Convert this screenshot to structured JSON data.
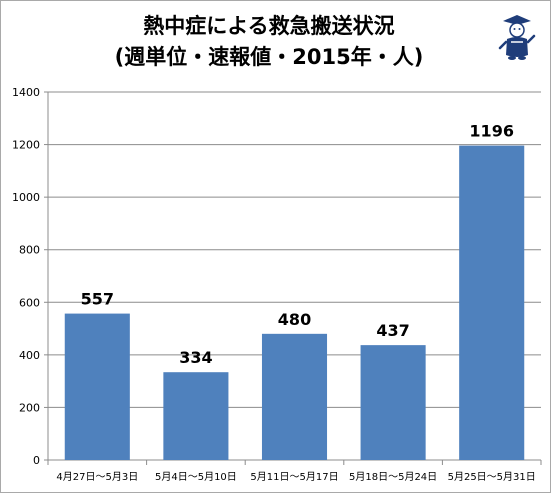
{
  "colors": {
    "bar": "#4f81bd",
    "gridline": "#8c8c8c",
    "axis": "#8c8c8c",
    "frame_border": "#a9a9a9",
    "mascot_accent": "#1f3d7a"
  },
  "decoration": {
    "mascot_icon": "cartoon-mascot-icon"
  },
  "chart_data": {
    "type": "bar",
    "title": "熱中症による救急搬送状況",
    "subtitle": "(週単位・速報値・2015年・人)",
    "xlabel": "",
    "ylabel": "",
    "categories": [
      "4月27日～5月3日",
      "5月4日～5月10日",
      "5月11日～5月17日",
      "5月18日～5月24日",
      "5月25日～5月31日"
    ],
    "values": [
      557,
      334,
      480,
      437,
      1196
    ],
    "ylim": [
      0,
      1400
    ],
    "yticks": [
      "0",
      "200",
      "400",
      "600",
      "800",
      "1000",
      "1200",
      "1400"
    ],
    "data_labels": [
      "557",
      "334",
      "480",
      "437",
      "1196"
    ],
    "grid": true,
    "legend": "none"
  }
}
